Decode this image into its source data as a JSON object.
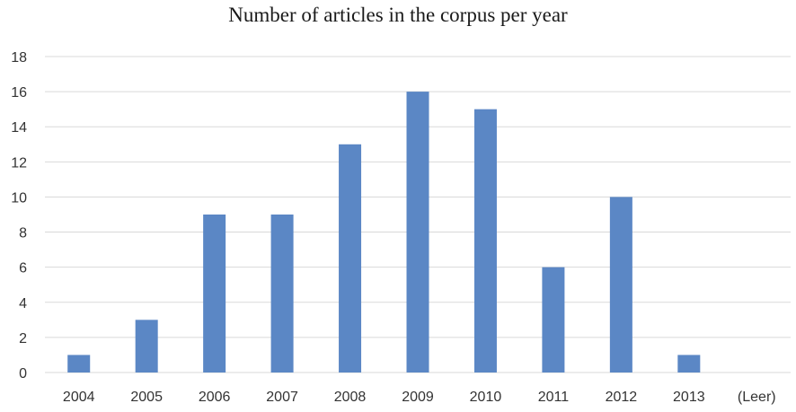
{
  "chart_data": {
    "type": "bar",
    "title": "Number of articles in the corpus per year",
    "xlabel": "",
    "ylabel": "",
    "categories": [
      "2004",
      "2005",
      "2006",
      "2007",
      "2008",
      "2009",
      "2010",
      "2011",
      "2012",
      "2013",
      "(Leer)"
    ],
    "values": [
      1,
      3,
      9,
      9,
      13,
      16,
      15,
      6,
      10,
      1,
      0
    ],
    "ylim": [
      0,
      18
    ],
    "yticks": [
      0,
      2,
      4,
      6,
      8,
      10,
      12,
      14,
      16,
      18
    ],
    "grid": true,
    "legend": "none",
    "bar_color": "#5b87c5",
    "grid_color": "#d9d9d9"
  }
}
